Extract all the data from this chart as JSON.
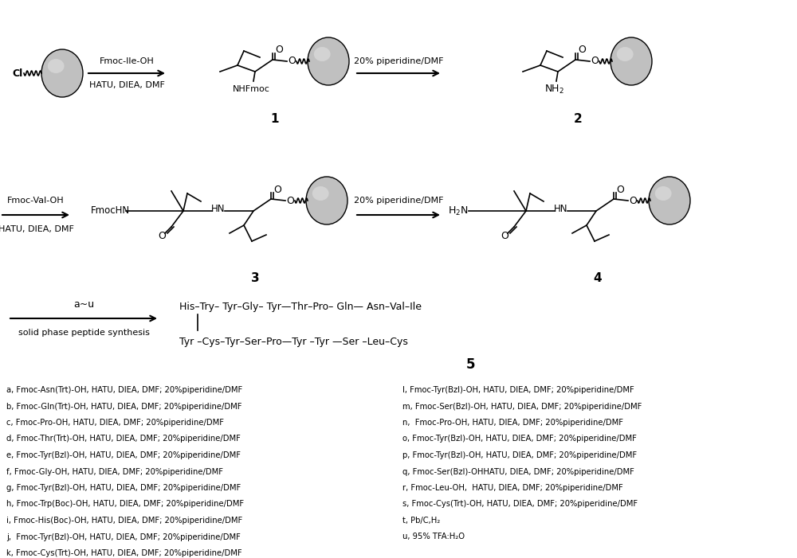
{
  "bg_color": "#ffffff",
  "fig_width": 10.0,
  "fig_height": 7.01,
  "dpi": 100,
  "bead_color": "#c0c0c0",
  "bead_edge": "#000000",
  "footnotes_left": [
    "a, Fmoc-Asn(Trt)-OH, HATU, DIEA, DMF; 20%piperidine/DMF",
    "b, Fmoc-Gln(Trt)-OH, HATU, DIEA, DMF; 20%piperidine/DMF",
    "c, Fmoc-Pro-OH, HATU, DIEA, DMF; 20%piperidine/DMF",
    "d, Fmoc-Thr(Trt)-OH, HATU, DIEA, DMF; 20%piperidine/DMF",
    "e, Fmoc-Tyr(Bzl)-OH, HATU, DIEA, DMF; 20%piperidine/DMF",
    "f, Fmoc-Gly-OH, HATU, DIEA, DMF; 20%piperidine/DMF",
    "g, Fmoc-Tyr(Bzl)-OH, HATU, DIEA, DMF; 20%piperidine/DMF",
    "h, Fmoc-Trp(Boc)-OH, HATU, DIEA, DMF; 20%piperidine/DMF",
    "i, Fmoc-His(Boc)-OH, HATU, DIEA, DMF; 20%piperidine/DMF",
    "j,  Fmoc-Tyr(Bzl)-OH, HATU, DIEA, DMF; 20%piperidine/DMF",
    "k, Fmoc-Cys(Trt)-OH, HATU, DIEA, DMF; 20%piperidine/DMF"
  ],
  "footnotes_right": [
    "l, Fmoc-Tyr(Bzl)-OH, HATU, DIEA, DMF; 20%piperidine/DMF",
    "m, Fmoc-Ser(Bzl)-OH, HATU, DIEA, DMF; 20%piperidine/DMF",
    "n,  Fmoc-Pro-OH, HATU, DIEA, DMF; 20%piperidine/DMF",
    "o, Fmoc-Tyr(Bzl)-OH, HATU, DIEA, DMF; 20%piperidine/DMF",
    "p, Fmoc-Tyr(Bzl)-OH, HATU, DIEA, DMF; 20%piperidine/DMF",
    "q, Fmoc-Ser(Bzl)-OHHATU, DIEA, DMF; 20%piperidine/DMF",
    "r, Fmoc-Leu-OH,  HATU, DIEA, DMF; 20%piperidine/DMF",
    "s, Fmoc-Cys(Trt)-OH, HATU, DIEA, DMF; 20%piperidine/DMF",
    "t, Pb/C,H₂",
    "u, 95% TFA:H₂O"
  ]
}
